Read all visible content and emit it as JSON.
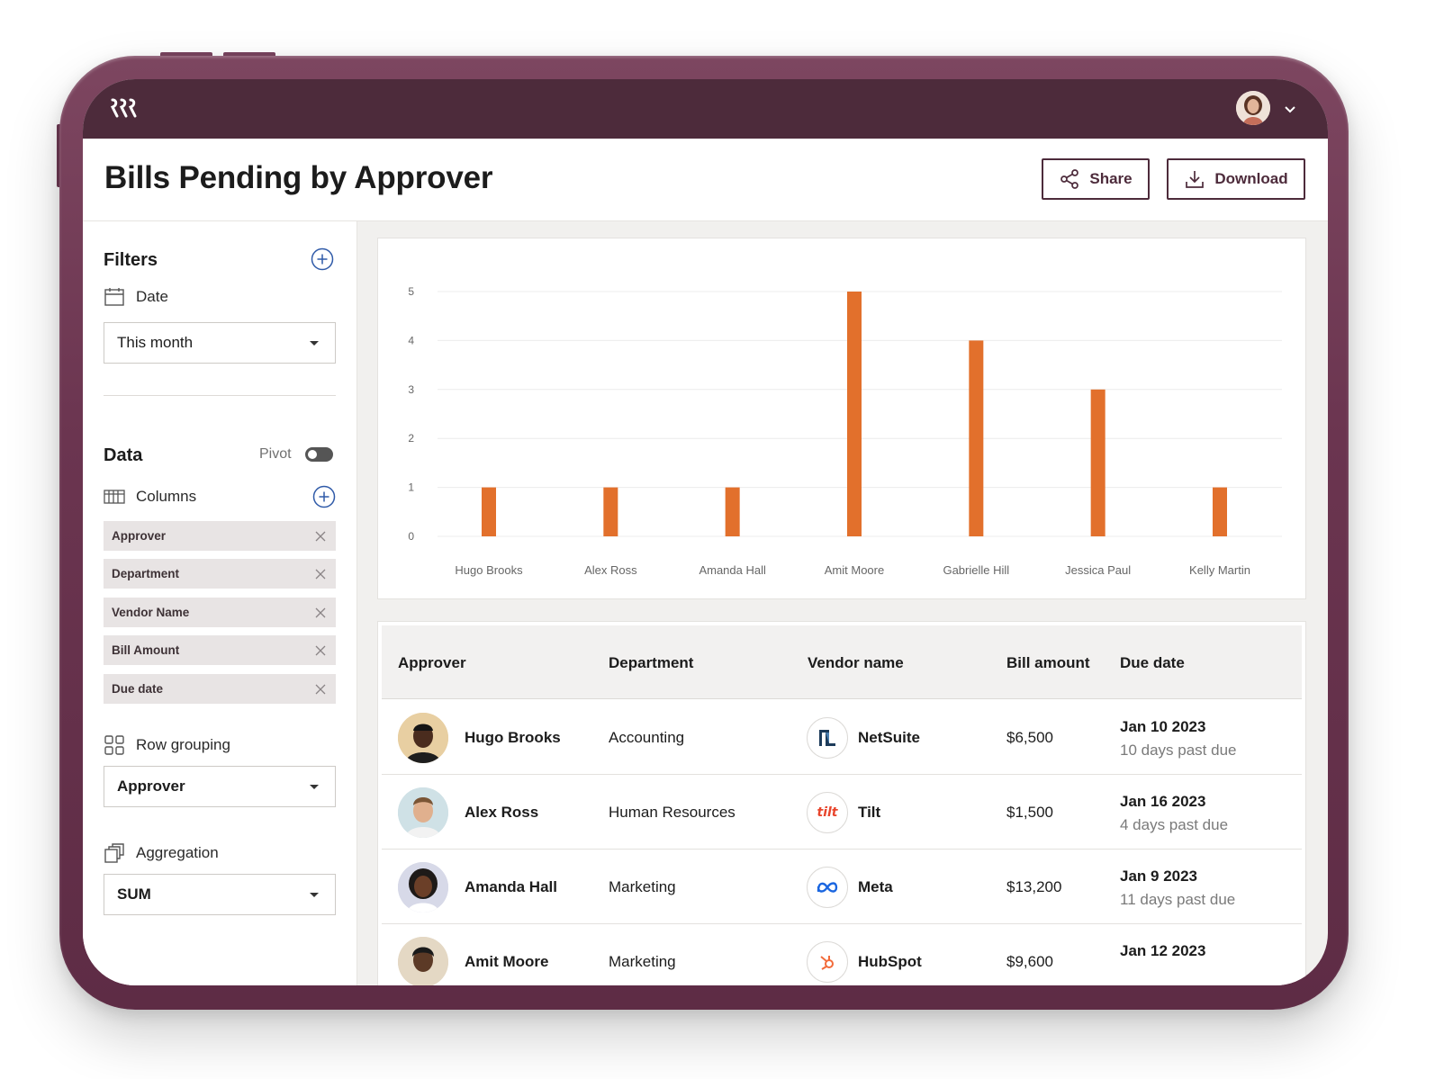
{
  "header": {
    "title": "Bills Pending by Approver",
    "share_label": "Share",
    "download_label": "Download"
  },
  "filters": {
    "heading": "Filters",
    "date_label": "Date",
    "date_value": "This month"
  },
  "data_section": {
    "heading": "Data",
    "pivot_label": "Pivot",
    "pivot_on": false,
    "columns_label": "Columns",
    "columns": [
      "Approver",
      "Department",
      "Vendor Name",
      "Bill Amount",
      "Due date"
    ],
    "row_grouping_label": "Row grouping",
    "row_grouping_value": "Approver",
    "aggregation_label": "Aggregation",
    "aggregation_value": "SUM"
  },
  "colors": {
    "brand": "#4d2b3b",
    "bar": "#e2702c"
  },
  "chart_data": {
    "type": "bar",
    "categories": [
      "Hugo Brooks",
      "Alex Ross",
      "Amanda Hall",
      "Amit Moore",
      "Gabrielle Hill",
      "Jessica Paul",
      "Kelly Martin"
    ],
    "values": [
      1,
      1,
      1,
      5,
      4,
      3,
      1
    ],
    "yticks": [
      "0",
      "1",
      "2",
      "3",
      "4",
      "5"
    ],
    "ylim": [
      0,
      5
    ],
    "grid": true
  },
  "table": {
    "headers": [
      "Approver",
      "Department",
      "Vendor name",
      "Bill amount",
      "Due date"
    ],
    "rows": [
      {
        "approver": "Hugo Brooks",
        "department": "Accounting",
        "vendor": "NetSuite",
        "amount": "$6,500",
        "due": "Jan 10 2023",
        "status": "10 days past due"
      },
      {
        "approver": "Alex Ross",
        "department": "Human Resources",
        "vendor": "Tilt",
        "amount": "$1,500",
        "due": "Jan 16 2023",
        "status": "4 days past due"
      },
      {
        "approver": "Amanda Hall",
        "department": "Marketing",
        "vendor": "Meta",
        "amount": "$13,200",
        "due": "Jan 9 2023",
        "status": "11 days past due"
      },
      {
        "approver": "Amit Moore",
        "department": "Marketing",
        "vendor": "HubSpot",
        "amount": "$9,600",
        "due": "Jan 12 2023",
        "status": ""
      }
    ]
  }
}
